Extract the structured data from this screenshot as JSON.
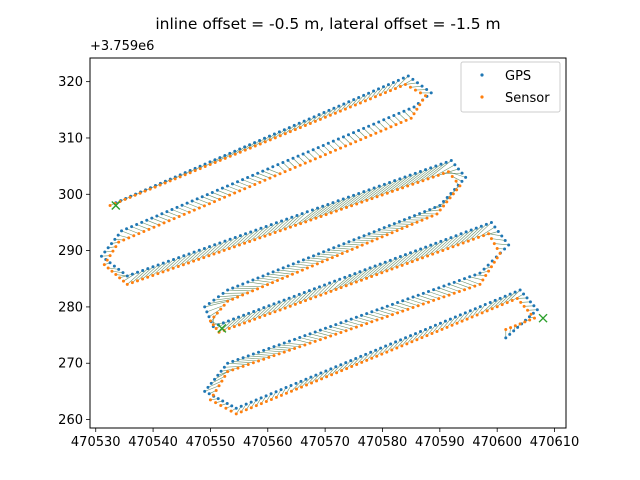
{
  "chart_data": {
    "type": "scatter",
    "title": "inline offset = -0.5 m, lateral offset = -1.5 m",
    "xlabel": "",
    "ylabel": "",
    "y_offset_label": "+3.759e6",
    "xlim": [
      470529,
      470612
    ],
    "ylim": [
      258.5,
      324.2
    ],
    "x_ticks": [
      470530,
      470540,
      470550,
      470560,
      470570,
      470580,
      470590,
      470600,
      470610
    ],
    "x_tick_labels": [
      "470530",
      "470540",
      "470550",
      "470560",
      "470570",
      "470580",
      "470590",
      "470600",
      "470610"
    ],
    "y_ticks": [
      260,
      270,
      280,
      290,
      300,
      310,
      320
    ],
    "y_tick_labels": [
      "260",
      "270",
      "280",
      "290",
      "300",
      "310",
      "320"
    ],
    "legend_position": "upper right",
    "connectors": "thin lines join each GPS point to its matching Sensor point",
    "markers": "green x at segment ends",
    "series": [
      {
        "name": "GPS",
        "color": "#1f77b4",
        "path": [
          [
            470533.5,
            298.5
          ],
          [
            470584.5,
            321.0
          ],
          [
            470588.5,
            318.0
          ],
          [
            470585.5,
            315.5
          ],
          [
            470534.5,
            293.5
          ],
          [
            470531.0,
            289.0
          ],
          [
            470535.5,
            285.5
          ],
          [
            470592.0,
            306.0
          ],
          [
            470594.5,
            303.0
          ],
          [
            470590.0,
            298.0
          ],
          [
            470553.0,
            283.0
          ],
          [
            470549.0,
            280.0
          ],
          [
            470550.5,
            276.5
          ],
          [
            470599.0,
            295.0
          ],
          [
            470602.0,
            291.0
          ],
          [
            470597.0,
            286.0
          ],
          [
            470553.0,
            270.0
          ],
          [
            470549.0,
            265.0
          ],
          [
            470554.5,
            262.0
          ],
          [
            470604.0,
            283.0
          ],
          [
            470607.0,
            279.5
          ],
          [
            470601.5,
            274.5
          ]
        ],
        "point_spacing": 0.95
      },
      {
        "name": "Sensor",
        "color": "#ff7f0e",
        "path": [
          [
            470532.5,
            298.0
          ],
          [
            470584.0,
            319.5
          ],
          [
            470587.5,
            317.5
          ],
          [
            470585.0,
            313.5
          ],
          [
            470534.0,
            291.5
          ],
          [
            470531.5,
            287.5
          ],
          [
            470535.5,
            284.0
          ],
          [
            470591.5,
            304.0
          ],
          [
            470593.5,
            301.5
          ],
          [
            470589.5,
            296.5
          ],
          [
            470553.0,
            281.0
          ],
          [
            470550.0,
            277.5
          ],
          [
            470551.5,
            275.5
          ],
          [
            470598.5,
            293.0
          ],
          [
            470600.5,
            289.5
          ],
          [
            470597.0,
            284.0
          ],
          [
            470553.0,
            268.5
          ],
          [
            470550.0,
            263.5
          ],
          [
            470554.5,
            261.0
          ],
          [
            470603.5,
            281.5
          ],
          [
            470606.5,
            278.0
          ],
          [
            470601.5,
            276.0
          ]
        ],
        "point_spacing": 0.95
      }
    ]
  }
}
